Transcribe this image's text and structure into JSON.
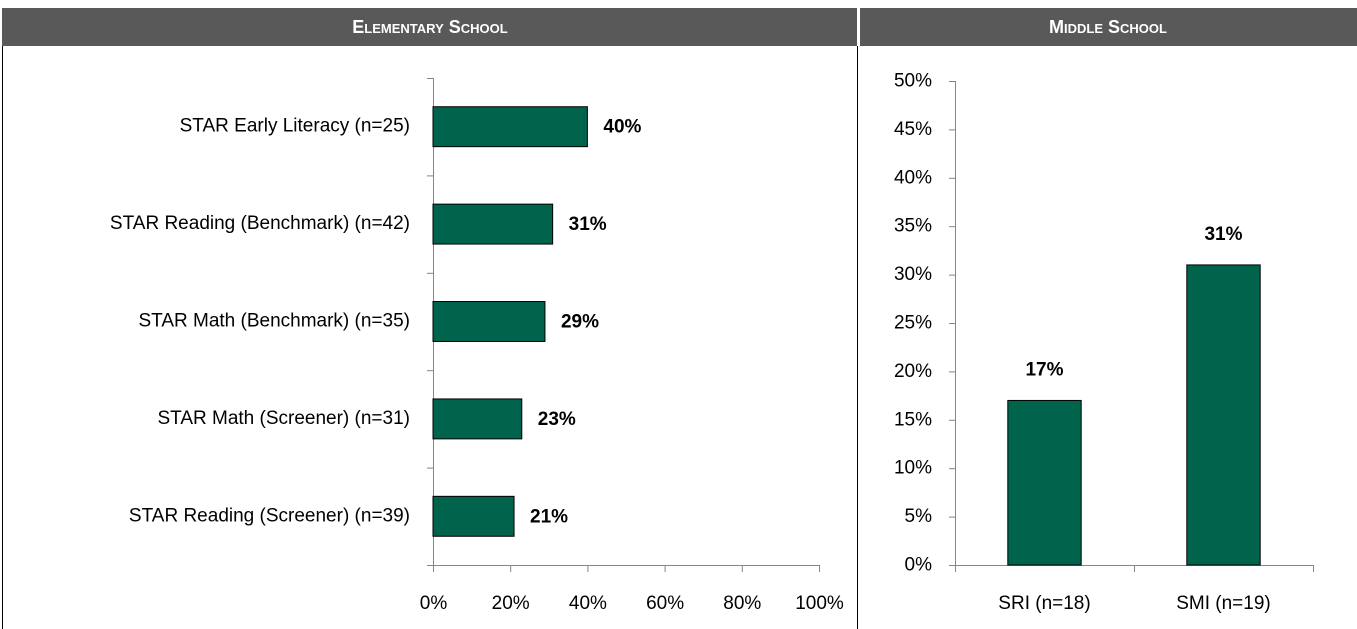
{
  "chart_data": [
    {
      "type": "bar",
      "orientation": "horizontal",
      "title": "Elementary School",
      "categories": [
        "STAR Early Literacy (n=25)",
        "STAR Reading (Benchmark) (n=42)",
        "STAR Math (Benchmark) (n=35)",
        "STAR Math (Screener) (n=31)",
        "STAR Reading (Screener) (n=39)"
      ],
      "values": [
        40,
        31,
        29,
        23,
        21
      ],
      "value_labels": [
        "40%",
        "31%",
        "29%",
        "23%",
        "21%"
      ],
      "color": "#00644d",
      "xlim": [
        0,
        100
      ],
      "xticks": [
        {
          "value": 0,
          "label": "0%"
        },
        {
          "value": 20,
          "label": "20%"
        },
        {
          "value": 40,
          "label": "40%"
        },
        {
          "value": 60,
          "label": "60%"
        },
        {
          "value": 80,
          "label": "80%"
        },
        {
          "value": 100,
          "label": "100%"
        }
      ]
    },
    {
      "type": "bar",
      "orientation": "vertical",
      "title": "Middle School",
      "categories": [
        "SRI (n=18)",
        "SMI (n=19)"
      ],
      "values": [
        17,
        31
      ],
      "value_labels": [
        "17%",
        "31%"
      ],
      "color": "#00644d",
      "ylim": [
        0,
        50
      ],
      "yticks": [
        {
          "value": 0,
          "label": "0%"
        },
        {
          "value": 5,
          "label": "5%"
        },
        {
          "value": 10,
          "label": "10%"
        },
        {
          "value": 15,
          "label": "15%"
        },
        {
          "value": 20,
          "label": "20%"
        },
        {
          "value": 25,
          "label": "25%"
        },
        {
          "value": 30,
          "label": "30%"
        },
        {
          "value": 35,
          "label": "35%"
        },
        {
          "value": 40,
          "label": "40%"
        },
        {
          "value": 45,
          "label": "45%"
        },
        {
          "value": 50,
          "label": "50%"
        }
      ]
    }
  ]
}
